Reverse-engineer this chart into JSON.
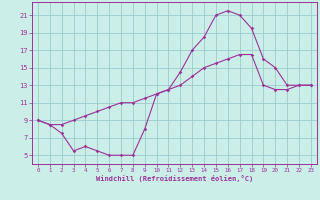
{
  "xlabel": "Windchill (Refroidissement éolien,°C)",
  "bg_color": "#cceee8",
  "grid_color": "#99cccc",
  "line_color": "#993399",
  "xlim": [
    -0.5,
    23.5
  ],
  "ylim": [
    4.0,
    22.5
  ],
  "xticks": [
    0,
    1,
    2,
    3,
    4,
    5,
    6,
    7,
    8,
    9,
    10,
    11,
    12,
    13,
    14,
    15,
    16,
    17,
    18,
    19,
    20,
    21,
    22,
    23
  ],
  "yticks": [
    5,
    7,
    9,
    11,
    13,
    15,
    17,
    19,
    21
  ],
  "curve1_x": [
    0,
    1,
    2,
    3,
    4,
    5,
    6,
    7,
    8,
    9,
    10,
    11,
    12,
    13,
    14,
    15,
    16,
    17,
    18,
    19,
    20,
    21,
    22,
    23
  ],
  "curve1_y": [
    9,
    8.5,
    7.5,
    5.5,
    6.0,
    5.5,
    5.0,
    5.0,
    5.0,
    8.0,
    12.0,
    12.5,
    14.5,
    17.0,
    18.5,
    21.0,
    21.5,
    21.0,
    19.5,
    16.0,
    15.0,
    13.0,
    13.0,
    13.0
  ],
  "curve2_x": [
    0,
    1,
    2,
    3,
    4,
    5,
    6,
    7,
    8,
    9,
    10,
    11,
    12,
    13,
    14,
    15,
    16,
    17,
    18,
    19,
    20,
    21,
    22,
    23
  ],
  "curve2_y": [
    9,
    8.5,
    8.5,
    9.0,
    9.5,
    10.0,
    10.5,
    11.0,
    11.0,
    11.5,
    12.0,
    12.5,
    13.0,
    14.0,
    15.0,
    15.5,
    16.0,
    16.5,
    16.5,
    13.0,
    12.5,
    12.5,
    13.0,
    13.0
  ]
}
